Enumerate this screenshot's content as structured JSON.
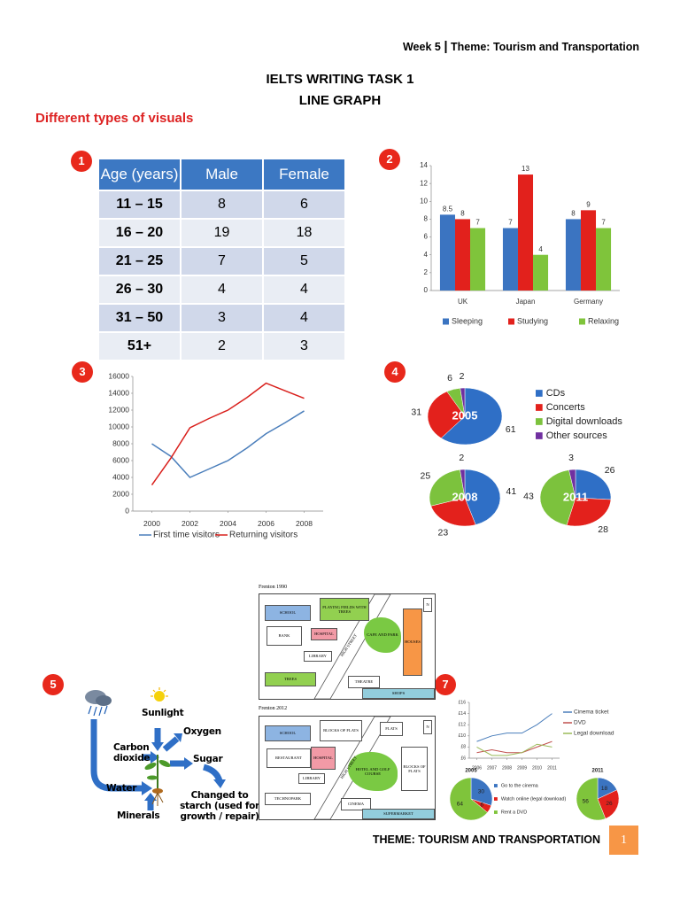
{
  "header": {
    "week": "Week 5",
    "separator": "|",
    "theme": "Theme: Tourism and Transportation"
  },
  "title": [
    "IELTS WRITING TASK 1",
    "LINE GRAPH"
  ],
  "subtitle": "Different types of visuals",
  "badges": [
    "1",
    "2",
    "3",
    "4",
    "5",
    "7"
  ],
  "table": {
    "header": [
      "Age (years)",
      "Male",
      "Female"
    ],
    "rows": [
      [
        "11 – 15",
        8,
        6
      ],
      [
        "16 – 20",
        19,
        18
      ],
      [
        "21 – 25",
        7,
        5
      ],
      [
        "26 – 30",
        4,
        4
      ],
      [
        "31 – 50",
        3,
        4
      ],
      [
        "51+",
        2,
        3
      ]
    ]
  },
  "chart_data": [
    {
      "type": "bar",
      "categories": [
        "UK",
        "Japan",
        "Germany"
      ],
      "series": [
        {
          "name": "Sleeping",
          "color": "#3b74c1",
          "values": [
            8.5,
            7,
            8
          ]
        },
        {
          "name": "Studying",
          "color": "#e2211c",
          "values": [
            8,
            13,
            9
          ]
        },
        {
          "name": "Relaxing",
          "color": "#7fc43b",
          "values": [
            7,
            4,
            7
          ]
        }
      ],
      "ylim": [
        0,
        14
      ],
      "yticks": [
        0,
        2,
        4,
        6,
        8,
        10,
        12,
        14
      ],
      "grid": false
    },
    {
      "type": "line",
      "x": [
        2000,
        2001,
        2002,
        2003,
        2004,
        2005,
        2006,
        2007,
        2008
      ],
      "series": [
        {
          "name": "First time visitors",
          "color": "#4a7ebb",
          "values": [
            8000,
            6500,
            4000,
            5000,
            6000,
            7500,
            9200,
            10500,
            11900
          ]
        },
        {
          "name": "Returning visitors",
          "color": "#d9201c",
          "values": [
            3100,
            6300,
            9900,
            11000,
            12000,
            13500,
            15200,
            14300,
            13400
          ]
        }
      ],
      "xlim": [
        1999,
        2009
      ],
      "xticks": [
        2000,
        2002,
        2004,
        2006,
        2008
      ],
      "ylim": [
        0,
        16000
      ],
      "yticks": [
        0,
        2000,
        4000,
        6000,
        8000,
        10000,
        12000,
        14000,
        16000
      ],
      "grid": false
    },
    {
      "type": "pie",
      "categories": [
        "CDs",
        "Concerts",
        "Digital downloads",
        "Other sources"
      ],
      "colors": [
        "#2f6fc6",
        "#e3211c",
        "#7cc23d",
        "#7030a0"
      ],
      "pies": [
        {
          "title": "2005",
          "values": [
            61,
            31,
            6,
            2
          ]
        },
        {
          "title": "2008",
          "values": [
            41,
            23,
            25,
            2
          ]
        },
        {
          "title": "2011",
          "values": [
            26,
            28,
            43,
            3
          ]
        }
      ]
    },
    {
      "type": "line",
      "x": [
        2006,
        2007,
        2008,
        2009,
        2010,
        2011
      ],
      "series": [
        {
          "name": "Cinema ticket",
          "color": "#4a7ebb",
          "values": [
            9,
            10,
            10.5,
            10.5,
            12,
            14
          ]
        },
        {
          "name": "DVD",
          "color": "#c0504d",
          "values": [
            7,
            7.5,
            7,
            7,
            8,
            9
          ]
        },
        {
          "name": "Legal download",
          "color": "#9bbb59",
          "values": [
            8,
            6.5,
            6.5,
            7,
            8.5,
            8
          ]
        }
      ],
      "xlim": [
        2005.5,
        2011.5
      ],
      "xticks": [
        2006,
        2007,
        2008,
        2009,
        2010,
        2011
      ],
      "ylim": [
        6,
        16
      ],
      "yticks": [
        {
          "value": 6,
          "label": "£6"
        },
        {
          "value": 8,
          "label": "£8"
        },
        {
          "value": 10,
          "label": "£10"
        },
        {
          "value": 12,
          "label": "£12"
        },
        {
          "value": 14,
          "label": "£14"
        },
        {
          "value": 16,
          "label": "£16"
        }
      ],
      "grid": false
    },
    {
      "type": "pie",
      "categories": [
        "Go to the cinema",
        "Watch online (legal download)",
        "Rent a DVD"
      ],
      "colors": [
        "#3b74c1",
        "#e2211c",
        "#7fc43b"
      ],
      "pies": [
        {
          "title": "2005",
          "values": [
            30,
            6,
            64
          ]
        },
        {
          "title": "2011",
          "values": [
            18,
            26,
            56
          ]
        }
      ]
    }
  ],
  "diagram": {
    "labels": [
      "Sunlight",
      "Oxygen",
      "Carbon dioxide",
      "Sugar",
      "Water",
      "Minerals",
      "Changed to starch (used for growth / repair)"
    ]
  },
  "map": {
    "panels": [
      {
        "title": "Frenton 1990",
        "labels": [
          "SCHOOL",
          "PLAYING FIELDS WITH TREES",
          "BANK",
          "HOSPITAL",
          "LIBRARY",
          "CAFE AND PARK",
          "HOUSES",
          "TREES",
          "THEATRE",
          "SHOPS",
          "HIGH STREET",
          "N"
        ]
      },
      {
        "title": "Frenton 2012",
        "labels": [
          "SCHOOL",
          "BLOCKS OF FLATS",
          "FLATS",
          "RESTAURANT",
          "HOSPITAL",
          "HOTEL AND GOLF COURSE",
          "BLOCKS OF FLATS",
          "LIBRARY",
          "TECHNOPARK",
          "CINEMA",
          "SUPERMARKET",
          "HIGH STREET",
          "N"
        ]
      }
    ]
  },
  "footer": {
    "text": "THEME: TOURISM AND TRANSPORTATION",
    "page": "1"
  }
}
